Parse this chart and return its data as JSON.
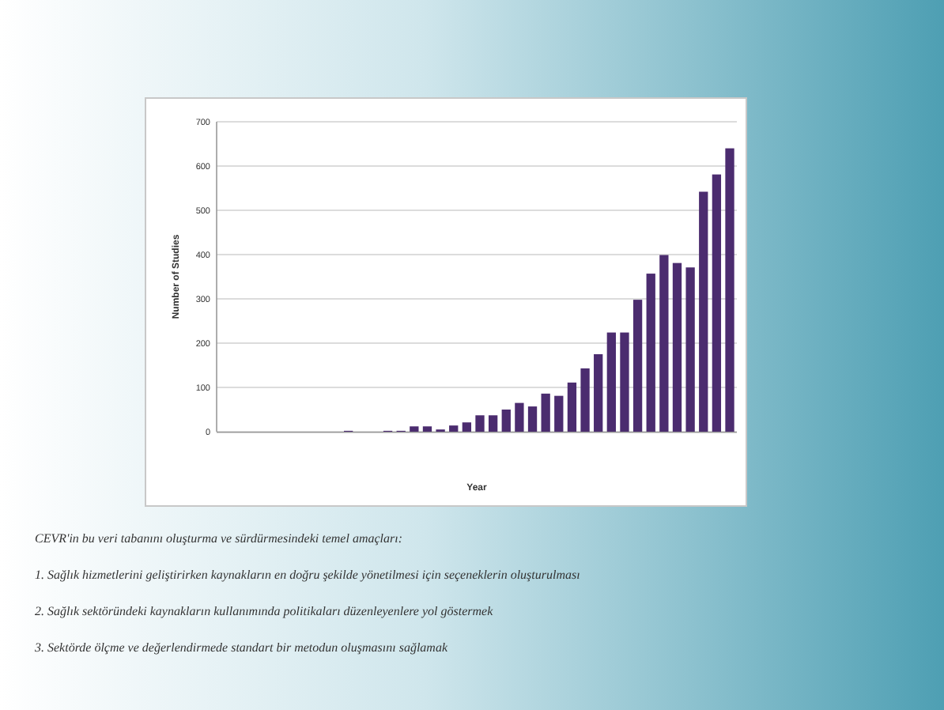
{
  "chart_data": {
    "type": "bar",
    "xlabel": "Year",
    "ylabel": "Number of Studies",
    "categories": [
      null,
      null,
      null,
      null,
      null,
      null,
      null,
      null,
      null,
      null,
      null,
      null,
      null,
      null,
      null,
      null,
      null,
      null,
      null,
      null,
      null,
      null,
      null,
      null,
      null,
      null,
      null,
      null,
      null,
      null,
      null,
      null,
      null,
      null,
      null,
      null,
      null,
      null,
      null
    ],
    "values": [
      0,
      0,
      0,
      0,
      0,
      0,
      0,
      0,
      0,
      2,
      0,
      0,
      2,
      2,
      12,
      12,
      5,
      14,
      21,
      37,
      37,
      50,
      65,
      57,
      86,
      81,
      111,
      143,
      175,
      224,
      224,
      298,
      357,
      399,
      381,
      371,
      542,
      581,
      640
    ],
    "color": "#4b2c6f",
    "ylim": [
      0,
      700
    ],
    "yticks": [
      0,
      100,
      200,
      300,
      400,
      500,
      600,
      700
    ],
    "grid": "y",
    "annotations": [
      "CEVR'in bu veri tabanını oluşturma ve sürdürmesindeki temel amaçları:",
      "1. Sağlık hizmetlerini geliştirirken kaynakların en doğru şekilde yönetilmesi için seçeneklerin oluşturulması",
      "2. Sağlık sektöründeki kaynakların kullanımında politikaları düzenleyenlere yol göstermek",
      "3. Sektörde ölçme ve değerlendirmede standart bir metodun oluşmasını sağlamak"
    ]
  }
}
